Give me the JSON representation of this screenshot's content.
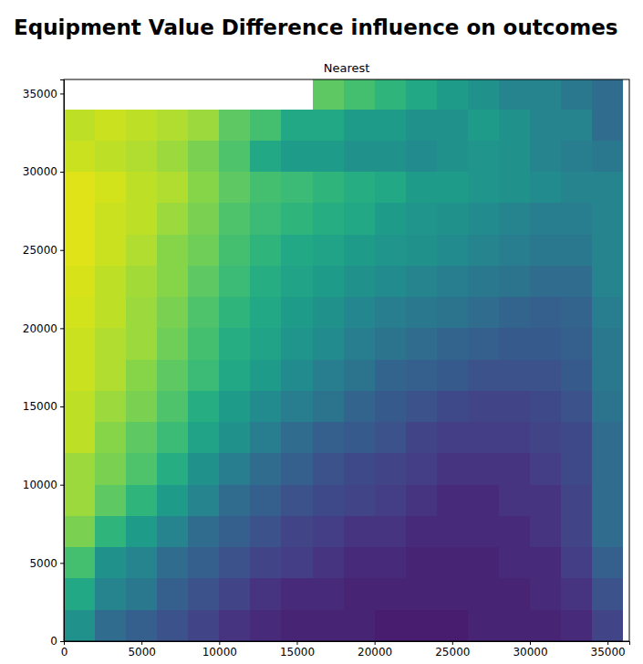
{
  "chart_data": {
    "type": "heatmap",
    "title": "Equipment Value Difference influence on outcomes",
    "subtitle": "Nearest",
    "color": "viridis",
    "zlim": [
      0,
      1
    ],
    "xlim": [
      0,
      36400
    ],
    "ylim": [
      0,
      35900
    ],
    "xticks": [
      0,
      5000,
      10000,
      15000,
      20000,
      25000,
      30000,
      35000
    ],
    "yticks": [
      0,
      5000,
      10000,
      15000,
      20000,
      25000,
      30000,
      35000
    ],
    "x_edges": [
      0,
      2000,
      4000,
      6000,
      8000,
      10000,
      12000,
      14000,
      16000,
      18000,
      20000,
      22000,
      24000,
      26000,
      28000,
      30000,
      32000,
      34000,
      36000
    ],
    "y_edges": [
      0,
      2000,
      4000,
      6000,
      8000,
      10000,
      12000,
      14000,
      16000,
      18000,
      20000,
      22000,
      24000,
      26000,
      28000,
      30000,
      32000,
      34000,
      36000
    ],
    "cells": [
      [
        0.5,
        0.35,
        0.3,
        0.25,
        0.2,
        0.15,
        0.12,
        0.1,
        0.1,
        0.1,
        0.08,
        0.08,
        0.08,
        0.1,
        0.1,
        0.1,
        0.12,
        0.2
      ],
      [
        0.6,
        0.45,
        0.4,
        0.3,
        0.25,
        0.2,
        0.15,
        0.12,
        0.12,
        0.1,
        0.1,
        0.1,
        0.1,
        0.1,
        0.1,
        0.12,
        0.15,
        0.25
      ],
      [
        0.7,
        0.5,
        0.45,
        0.35,
        0.3,
        0.25,
        0.2,
        0.18,
        0.15,
        0.12,
        0.12,
        0.1,
        0.1,
        0.1,
        0.12,
        0.12,
        0.18,
        0.3
      ],
      [
        0.8,
        0.65,
        0.55,
        0.45,
        0.35,
        0.3,
        0.25,
        0.2,
        0.18,
        0.15,
        0.15,
        0.12,
        0.12,
        0.12,
        0.12,
        0.15,
        0.2,
        0.35
      ],
      [
        0.85,
        0.75,
        0.65,
        0.55,
        0.45,
        0.35,
        0.3,
        0.25,
        0.22,
        0.2,
        0.18,
        0.15,
        0.12,
        0.12,
        0.15,
        0.15,
        0.2,
        0.35
      ],
      [
        0.85,
        0.8,
        0.72,
        0.62,
        0.5,
        0.42,
        0.35,
        0.3,
        0.25,
        0.22,
        0.2,
        0.18,
        0.15,
        0.15,
        0.15,
        0.18,
        0.22,
        0.35
      ],
      [
        0.9,
        0.82,
        0.75,
        0.68,
        0.58,
        0.5,
        0.42,
        0.35,
        0.3,
        0.28,
        0.25,
        0.2,
        0.18,
        0.18,
        0.18,
        0.2,
        0.22,
        0.35
      ],
      [
        0.9,
        0.85,
        0.8,
        0.72,
        0.62,
        0.55,
        0.48,
        0.42,
        0.38,
        0.32,
        0.28,
        0.25,
        0.22,
        0.2,
        0.2,
        0.22,
        0.25,
        0.38
      ],
      [
        0.92,
        0.88,
        0.82,
        0.75,
        0.68,
        0.6,
        0.55,
        0.48,
        0.42,
        0.38,
        0.32,
        0.3,
        0.28,
        0.25,
        0.25,
        0.25,
        0.28,
        0.4
      ],
      [
        0.92,
        0.88,
        0.85,
        0.78,
        0.7,
        0.62,
        0.58,
        0.52,
        0.48,
        0.42,
        0.38,
        0.35,
        0.32,
        0.3,
        0.28,
        0.28,
        0.3,
        0.4
      ],
      [
        0.93,
        0.9,
        0.85,
        0.8,
        0.72,
        0.65,
        0.6,
        0.55,
        0.5,
        0.46,
        0.42,
        0.4,
        0.38,
        0.35,
        0.32,
        0.3,
        0.32,
        0.42
      ],
      [
        0.94,
        0.9,
        0.86,
        0.82,
        0.75,
        0.68,
        0.62,
        0.58,
        0.55,
        0.5,
        0.48,
        0.45,
        0.42,
        0.4,
        0.38,
        0.35,
        0.35,
        0.45
      ],
      [
        0.95,
        0.92,
        0.88,
        0.82,
        0.78,
        0.7,
        0.65,
        0.6,
        0.58,
        0.55,
        0.52,
        0.5,
        0.48,
        0.45,
        0.42,
        0.4,
        0.4,
        0.45
      ],
      [
        0.95,
        0.92,
        0.9,
        0.85,
        0.8,
        0.72,
        0.68,
        0.65,
        0.62,
        0.6,
        0.55,
        0.52,
        0.5,
        0.48,
        0.45,
        0.42,
        0.42,
        0.45
      ],
      [
        0.95,
        0.93,
        0.9,
        0.88,
        0.82,
        0.75,
        0.7,
        0.68,
        0.65,
        0.62,
        0.6,
        0.55,
        0.55,
        0.52,
        0.5,
        0.48,
        0.45,
        0.45
      ],
      [
        0.92,
        0.9,
        0.88,
        0.85,
        0.8,
        0.72,
        0.6,
        0.55,
        0.55,
        0.5,
        0.5,
        0.48,
        0.5,
        0.52,
        0.5,
        0.45,
        0.42,
        0.4
      ],
      [
        0.9,
        0.92,
        0.9,
        0.88,
        0.85,
        0.75,
        0.7,
        0.6,
        0.6,
        0.55,
        0.55,
        0.5,
        0.5,
        0.55,
        0.5,
        0.45,
        0.45,
        0.35
      ],
      [
        null,
        null,
        null,
        null,
        null,
        null,
        null,
        null,
        0.75,
        0.7,
        0.65,
        0.6,
        0.55,
        0.5,
        0.45,
        0.45,
        0.4,
        0.35
      ]
    ]
  }
}
